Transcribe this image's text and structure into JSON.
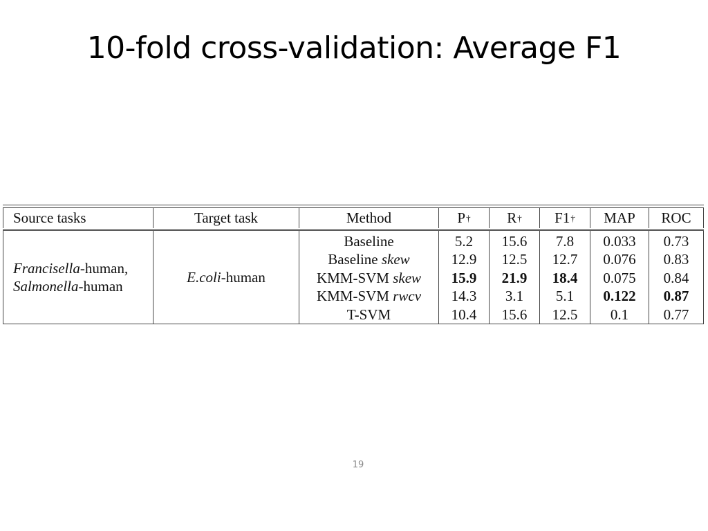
{
  "slide": {
    "title": "10-fold cross-validation: Average F1",
    "page_number": "19"
  },
  "table": {
    "headers": {
      "source": "Source tasks",
      "target": "Target task",
      "method": "Method",
      "p": "P",
      "r": "R",
      "f1": "F1",
      "map": "MAP",
      "roc": "ROC",
      "dagger": "†"
    },
    "source_tasks": {
      "line1_italic": "Francisella",
      "line1_rest": "-human,",
      "line2_italic": "Salmonella",
      "line2_rest": "-human"
    },
    "target_task": {
      "italic": "E.coli",
      "rest": "-human"
    },
    "rows": [
      {
        "method": "Baseline",
        "method_suffix": "",
        "p": "5.2",
        "r": "15.6",
        "f1": "7.8",
        "map": "0.033",
        "roc": "0.73"
      },
      {
        "method": "Baseline ",
        "method_suffix": "skew",
        "p": "12.9",
        "r": "12.5",
        "f1": "12.7",
        "map": "0.076",
        "roc": "0.83"
      },
      {
        "method": "KMM-SVM ",
        "method_suffix": "skew",
        "p": "15.9",
        "r": "21.9",
        "f1": "18.4",
        "map": "0.075",
        "roc": "0.84"
      },
      {
        "method": "KMM-SVM ",
        "method_suffix": "rwcv",
        "p": "14.3",
        "r": "3.1",
        "f1": "5.1",
        "map": "0.122",
        "roc": "0.87"
      },
      {
        "method": "T-SVM",
        "method_suffix": "",
        "p": "10.4",
        "r": "15.6",
        "f1": "12.5",
        "map": "0.1",
        "roc": "0.77"
      }
    ]
  }
}
